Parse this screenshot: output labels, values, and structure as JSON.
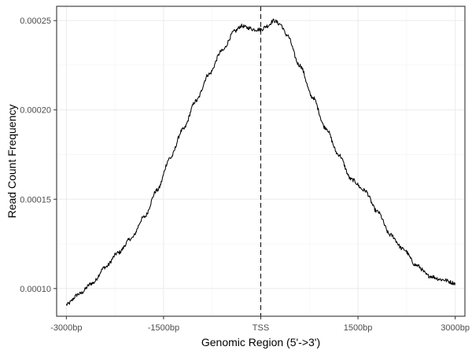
{
  "chart_data": {
    "type": "line",
    "title": "",
    "xlabel": "Genomic Region (5'->3')",
    "ylabel": "Read Count Frequency",
    "xlim": [
      -3150,
      3150
    ],
    "ylim": [
      8.45e-05,
      0.000258
    ],
    "x_ticks": [
      {
        "value": -3000,
        "label": "-3000bp"
      },
      {
        "value": -1500,
        "label": "-1500bp"
      },
      {
        "value": 0,
        "label": "TSS"
      },
      {
        "value": 1500,
        "label": "1500bp"
      },
      {
        "value": 3000,
        "label": "3000bp"
      }
    ],
    "y_ticks": [
      {
        "value": 0.0001,
        "label": "0.00010"
      },
      {
        "value": 0.00015,
        "label": "0.00015"
      },
      {
        "value": 0.0002,
        "label": "0.00020"
      },
      {
        "value": 0.00025,
        "label": "0.00025"
      }
    ],
    "grid": true,
    "vline": {
      "x": 0,
      "style": "dashed",
      "color": "#000000"
    },
    "series": [
      {
        "color": "#000000",
        "x": [
          -3000,
          -2800,
          -2600,
          -2400,
          -2200,
          -2000,
          -1800,
          -1600,
          -1400,
          -1200,
          -1000,
          -800,
          -600,
          -400,
          -300,
          -200,
          -100,
          0,
          100,
          200,
          300,
          400,
          600,
          800,
          1000,
          1200,
          1400,
          1600,
          1800,
          2000,
          2200,
          2400,
          2600,
          2800,
          3000
        ],
        "y": [
          9.1e-05,
          9.7e-05,
          0.000103,
          0.000112,
          0.00012,
          0.000128,
          0.00014,
          0.000155,
          0.000173,
          0.000189,
          0.000205,
          0.00022,
          0.000233,
          0.000244,
          0.000247,
          0.000246,
          0.000245,
          0.000245,
          0.000247,
          0.00025,
          0.000248,
          0.000242,
          0.000225,
          0.000207,
          0.00019,
          0.000175,
          0.000161,
          0.000155,
          0.000143,
          0.00013,
          0.000122,
          0.000113,
          0.000107,
          0.000105,
          0.000103
        ]
      }
    ]
  }
}
